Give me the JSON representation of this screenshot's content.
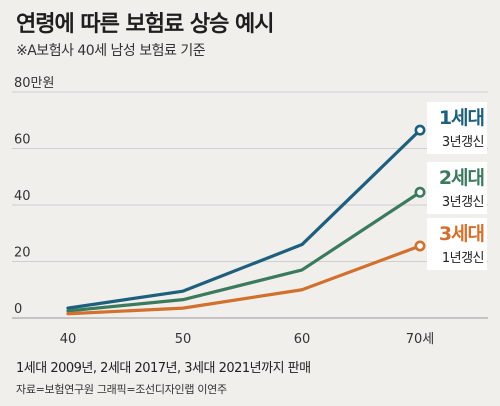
{
  "title": "연령에 따른 보험료 상승 예시",
  "subtitle": "※A보험사 40세 남성 보험료 기준",
  "footnote": "1세대 2009년, 2세대 2017년, 3세대 2021년까지 판매",
  "source": "자료=보험연구원   그래픽=조선디자인랩 이연주",
  "chart_data": {
    "type": "line",
    "categories": [
      "40",
      "50",
      "60",
      "70세"
    ],
    "y_tick_labels": [
      "0",
      "20",
      "40",
      "60",
      "80만원"
    ],
    "ylim": [
      0,
      80
    ],
    "grid": true,
    "series": [
      {
        "name": "1세대",
        "note": "3년갱신",
        "color": "#1d5f7c",
        "values": [
          3.5,
          9.5,
          26,
          66.5
        ]
      },
      {
        "name": "2세대",
        "note": "3년갱신",
        "color": "#3c7a5e",
        "values": [
          2.5,
          6.5,
          17,
          44.5
        ]
      },
      {
        "name": "3세대",
        "note": "1년갱신",
        "color": "#d2702e",
        "values": [
          1.5,
          3.5,
          10,
          25.5
        ]
      }
    ]
  }
}
